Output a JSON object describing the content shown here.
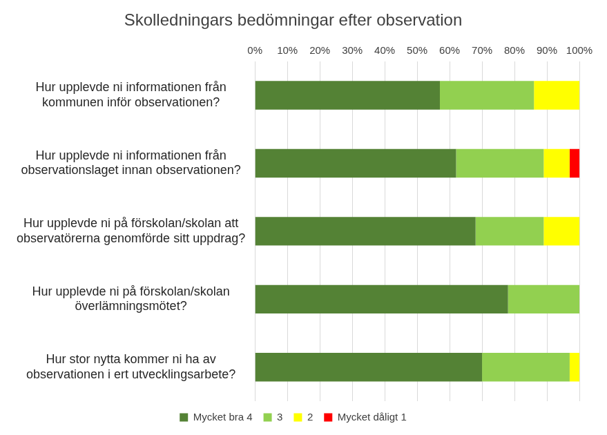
{
  "chart_data": {
    "type": "bar",
    "title": "Skolledningars bedömningar efter observation",
    "orientation": "horizontal",
    "stacked": true,
    "grid": true,
    "legend": "bottom",
    "categories": [
      [
        "Hur upplevde ni informationen från",
        "kommunen inför observationen?"
      ],
      [
        "Hur upplevde ni informationen från",
        "observationslaget innan observationen?"
      ],
      [
        "Hur upplevde ni på förskolan/skolan att",
        "observatörerna genomförde sitt uppdrag?"
      ],
      [
        "Hur upplevde ni på förskolan/skolan",
        "överlämningsmötet?"
      ],
      [
        "Hur stor nytta kommer ni ha av",
        "observationen i ert utvecklingsarbete?"
      ]
    ],
    "series": [
      {
        "name": "Mycket bra 4",
        "color": "#548235",
        "values": [
          57,
          62,
          68,
          78,
          70
        ]
      },
      {
        "name": "3",
        "color": "#92d050",
        "values": [
          29,
          27,
          21,
          22,
          27
        ]
      },
      {
        "name": "2",
        "color": "#ffff00",
        "values": [
          14,
          8,
          11,
          0,
          3
        ]
      },
      {
        "name": "Mycket dåligt 1",
        "color": "#ff0000",
        "values": [
          0,
          3,
          0,
          0,
          0
        ]
      }
    ],
    "xlim": [
      0,
      100
    ],
    "xticks": [
      {
        "value": 0,
        "label": "0%"
      },
      {
        "value": 10,
        "label": "10%"
      },
      {
        "value": 20,
        "label": "20%"
      },
      {
        "value": 30,
        "label": "30%"
      },
      {
        "value": 40,
        "label": "40%"
      },
      {
        "value": 50,
        "label": "50%"
      },
      {
        "value": 60,
        "label": "60%"
      },
      {
        "value": 70,
        "label": "70%"
      },
      {
        "value": 80,
        "label": "80%"
      },
      {
        "value": 90,
        "label": "90%"
      },
      {
        "value": 100,
        "label": "100%"
      }
    ]
  }
}
